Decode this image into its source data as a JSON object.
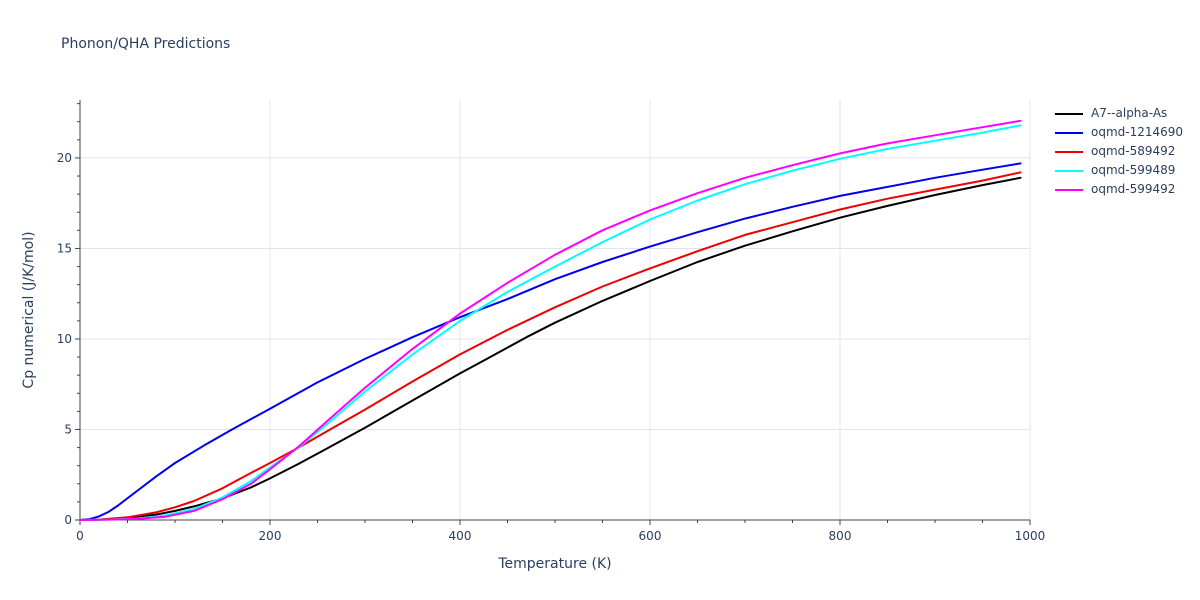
{
  "chart_data": {
    "type": "line",
    "title": "Phonon/QHA Predictions",
    "xlabel": "Temperature (K)",
    "ylabel": "Cp numerical (J/K/mol)",
    "xlim": [
      0,
      1000
    ],
    "ylim": [
      0,
      23.2
    ],
    "xticks": [
      0,
      200,
      400,
      600,
      800,
      1000
    ],
    "yticks": [
      0,
      5,
      10,
      15,
      20
    ],
    "grid": true,
    "legend_position": "top-right",
    "series": [
      {
        "name": "A7--alpha-As",
        "color": "#000000",
        "x": [
          0,
          20,
          50,
          80,
          100,
          120,
          150,
          180,
          200,
          230,
          260,
          300,
          350,
          400,
          430,
          470,
          500,
          550,
          600,
          650,
          700,
          750,
          800,
          850,
          900,
          950,
          990
        ],
        "y": [
          0,
          0.02,
          0.12,
          0.3,
          0.5,
          0.75,
          1.2,
          1.8,
          2.3,
          3.1,
          3.95,
          5.1,
          6.6,
          8.1,
          8.95,
          10.1,
          10.9,
          12.1,
          13.2,
          14.25,
          15.15,
          15.95,
          16.7,
          17.35,
          17.95,
          18.5,
          18.9
        ]
      },
      {
        "name": "oqmd-1214690",
        "color": "#0000ee",
        "x": [
          0,
          10,
          20,
          30,
          40,
          60,
          80,
          100,
          130,
          160,
          200,
          250,
          300,
          350,
          400,
          450,
          500,
          550,
          600,
          650,
          700,
          750,
          800,
          850,
          900,
          950,
          990
        ],
        "y": [
          0,
          0.05,
          0.2,
          0.45,
          0.8,
          1.6,
          2.4,
          3.15,
          4.1,
          5.0,
          6.15,
          7.6,
          8.9,
          10.1,
          11.2,
          12.2,
          13.3,
          14.25,
          15.1,
          15.9,
          16.65,
          17.3,
          17.9,
          18.4,
          18.9,
          19.35,
          19.7
        ]
      },
      {
        "name": "oqmd-589492",
        "color": "#ee0000",
        "x": [
          0,
          20,
          50,
          80,
          100,
          120,
          150,
          180,
          200,
          230,
          260,
          300,
          350,
          400,
          450,
          500,
          550,
          600,
          650,
          700,
          750,
          800,
          850,
          900,
          950,
          990
        ],
        "y": [
          0,
          0.02,
          0.15,
          0.42,
          0.7,
          1.05,
          1.75,
          2.6,
          3.15,
          4.0,
          4.9,
          6.1,
          7.65,
          9.15,
          10.5,
          11.75,
          12.9,
          13.9,
          14.85,
          15.75,
          16.45,
          17.15,
          17.75,
          18.25,
          18.75,
          19.2
        ]
      },
      {
        "name": "oqmd-599489",
        "color": "#00ffff",
        "x": [
          0,
          30,
          60,
          90,
          120,
          150,
          180,
          200,
          230,
          260,
          300,
          350,
          400,
          450,
          500,
          550,
          600,
          650,
          700,
          750,
          800,
          850,
          900,
          950,
          990
        ],
        "y": [
          0,
          0.02,
          0.08,
          0.25,
          0.6,
          1.25,
          2.15,
          2.9,
          4.0,
          5.3,
          7.1,
          9.15,
          11.0,
          12.6,
          14.0,
          15.35,
          16.6,
          17.65,
          18.55,
          19.3,
          19.95,
          20.5,
          20.95,
          21.4,
          21.8
        ]
      },
      {
        "name": "oqmd-599492",
        "color": "#ff00ff",
        "x": [
          0,
          30,
          60,
          90,
          120,
          150,
          180,
          200,
          230,
          260,
          300,
          350,
          400,
          450,
          500,
          550,
          600,
          650,
          700,
          750,
          800,
          850,
          900,
          950,
          990
        ],
        "y": [
          0,
          0.02,
          0.06,
          0.18,
          0.5,
          1.15,
          2.0,
          2.8,
          4.05,
          5.45,
          7.3,
          9.45,
          11.4,
          13.1,
          14.65,
          16.0,
          17.1,
          18.05,
          18.9,
          19.6,
          20.25,
          20.8,
          21.25,
          21.7,
          22.05
        ]
      }
    ]
  }
}
